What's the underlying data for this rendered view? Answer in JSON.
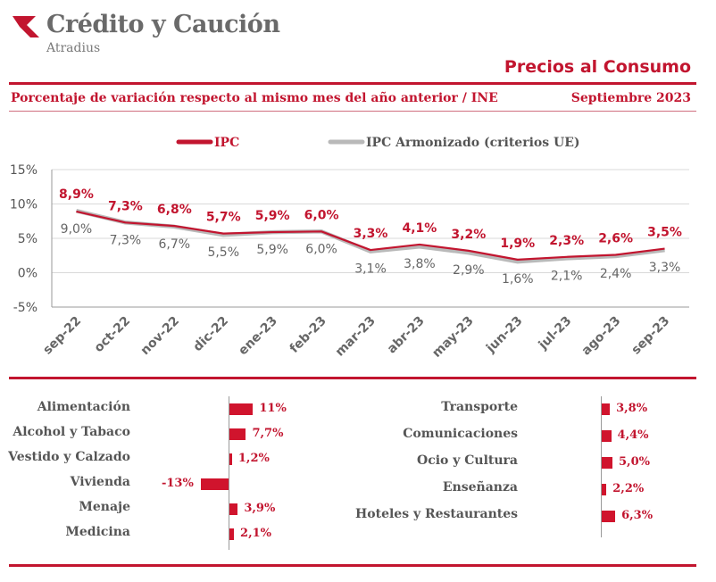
{
  "brand": {
    "name": "Crédito y Caución",
    "sub": "Atradius",
    "accent": "#c2152f"
  },
  "header": {
    "title": "Precios al Consumo",
    "subtitle": "Porcentaje de variación respecto al mismo mes del año anterior / INE",
    "date": "Septiembre  2023"
  },
  "chart_data": {
    "type": "line",
    "categories": [
      "sep-22",
      "oct-22",
      "nov-22",
      "dic-22",
      "ene-23",
      "feb-23",
      "mar-23",
      "abr-23",
      "may-23",
      "jun-23",
      "jul-23",
      "ago-23",
      "sep-23"
    ],
    "series": [
      {
        "name": "IPC",
        "color": "#c2152f",
        "values": [
          8.9,
          7.3,
          6.8,
          5.7,
          5.9,
          6.0,
          3.3,
          4.1,
          3.2,
          1.9,
          2.3,
          2.6,
          3.5
        ],
        "labels": [
          "8,9%",
          "7,3%",
          "6,8%",
          "5,7%",
          "5,9%",
          "6,0%",
          "3,3%",
          "4,1%",
          "3,2%",
          "1,9%",
          "2,3%",
          "2,6%",
          "3,5%"
        ]
      },
      {
        "name": "IPC Armonizado (criterios UE)",
        "color": "#b9b9b9",
        "values": [
          9.0,
          7.3,
          6.7,
          5.5,
          5.9,
          6.0,
          3.1,
          3.8,
          2.9,
          1.6,
          2.1,
          2.4,
          3.3
        ],
        "labels": [
          "9,0%",
          "7,3%",
          "6,7%",
          "5,5%",
          "5,9%",
          "6,0%",
          "3,1%",
          "3,8%",
          "2,9%",
          "1,6%",
          "2,1%",
          "2,4%",
          "3,3%"
        ]
      }
    ],
    "yticks": [
      15,
      10,
      5,
      0,
      -5
    ],
    "ytick_labels": [
      "15%",
      "10%",
      "5%",
      "0%",
      "-5%"
    ],
    "ylim": [
      -5,
      15
    ],
    "grid": "horizontal",
    "legend": "top-center"
  },
  "components_left": {
    "type": "bar",
    "items": [
      {
        "label": "Alimentación",
        "value": 11,
        "text": "11%"
      },
      {
        "label": "Alcohol y Tabaco",
        "value": 7.7,
        "text": "7,7%"
      },
      {
        "label": "Vestido y Calzado",
        "value": 1.2,
        "text": "1,2%"
      },
      {
        "label": "Vivienda",
        "value": -13,
        "text": "-13%"
      },
      {
        "label": "Menaje",
        "value": 3.9,
        "text": "3,9%"
      },
      {
        "label": "Medicina",
        "value": 2.1,
        "text": "2,1%"
      }
    ]
  },
  "components_right": {
    "type": "bar",
    "items": [
      {
        "label": "Transporte",
        "value": 3.8,
        "text": "3,8%"
      },
      {
        "label": "Comunicaciones",
        "value": 4.4,
        "text": "4,4%"
      },
      {
        "label": "Ocio y Cultura",
        "value": 5.0,
        "text": "5,0%"
      },
      {
        "label": "Enseñanza",
        "value": 2.2,
        "text": "2,2%"
      },
      {
        "label": "Hoteles y Restaurantes",
        "value": 6.3,
        "text": "6,3%"
      }
    ]
  }
}
